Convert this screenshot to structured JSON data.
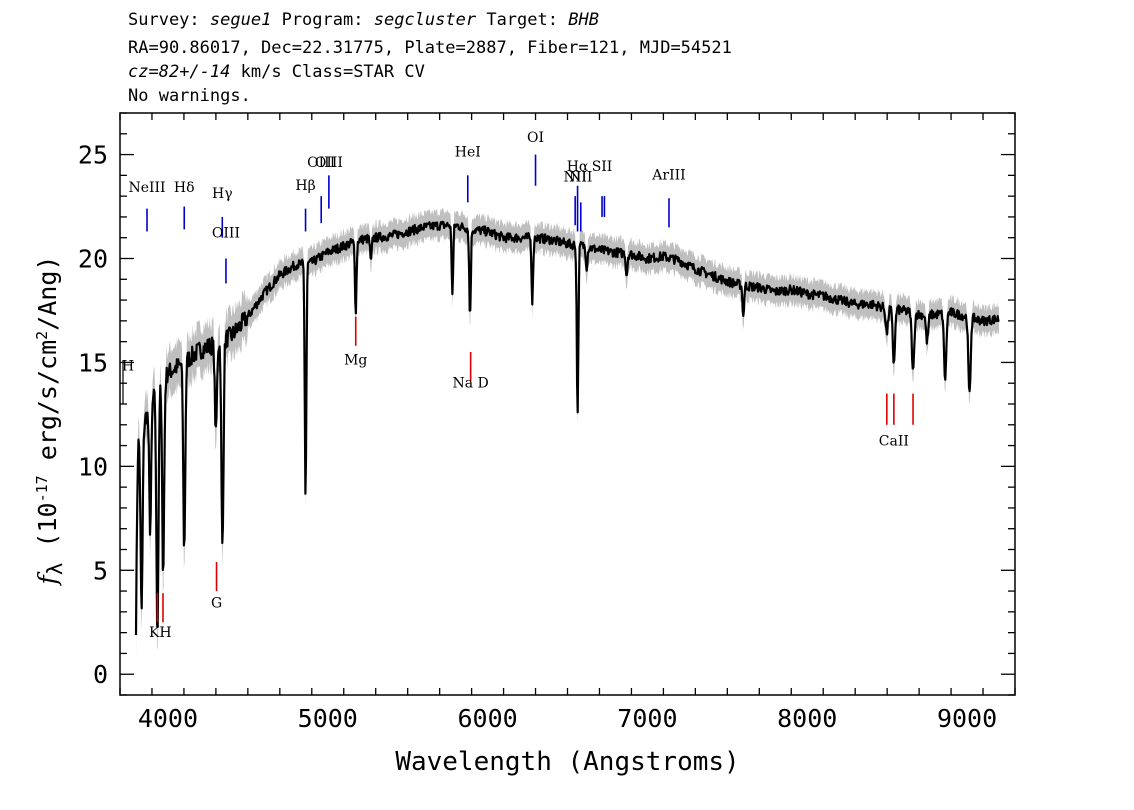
{
  "header": {
    "survey_label": "Survey:",
    "survey": "segue1",
    "program_label": "Program:",
    "program": "segcluster",
    "target_label": "Target:",
    "target": "BHB",
    "line2": "RA=90.86017, Dec=22.31775, Plate=2887, Fiber=121, MJD=54521",
    "cz_label": "cz=",
    "cz_value": "82+/-14",
    "cz_unit_class": " km/s Class=STAR CV",
    "warnings": "No warnings."
  },
  "chart_data": {
    "type": "line",
    "xlabel": "Wavelength (Angstroms)",
    "ylabel_symbol": "f",
    "ylabel_sub": "λ",
    "ylabel_pre": " (10",
    "ylabel_exp": "-17",
    "ylabel_post": " erg/s/cm",
    "ylabel_exp2": "2",
    "ylabel_tail": "/Ang)",
    "xlim": [
      3700,
      9300
    ],
    "ylim": [
      -1,
      27
    ],
    "xticks": [
      4000,
      5000,
      6000,
      7000,
      8000,
      9000
    ],
    "yticks": [
      0,
      5,
      10,
      15,
      20,
      25
    ],
    "colors": {
      "flux": "#000000",
      "error": "#bfbfbf",
      "emission": "#0000cc",
      "absorption": "#dd0000"
    },
    "continuum": [
      [
        3800,
        11.0
      ],
      [
        3900,
        13.2
      ],
      [
        4000,
        14.5
      ],
      [
        4100,
        15.0
      ],
      [
        4200,
        15.6
      ],
      [
        4300,
        15.9
      ],
      [
        4400,
        16.3
      ],
      [
        4500,
        17.2
      ],
      [
        4600,
        18.3
      ],
      [
        4700,
        19.2
      ],
      [
        4800,
        19.7
      ],
      [
        4900,
        19.8
      ],
      [
        5000,
        20.3
      ],
      [
        5100,
        20.6
      ],
      [
        5200,
        20.9
      ],
      [
        5300,
        21.0
      ],
      [
        5400,
        21.1
      ],
      [
        5500,
        21.3
      ],
      [
        5600,
        21.5
      ],
      [
        5700,
        21.6
      ],
      [
        5800,
        21.6
      ],
      [
        5900,
        21.4
      ],
      [
        6000,
        21.3
      ],
      [
        6100,
        21.0
      ],
      [
        6200,
        21.0
      ],
      [
        6300,
        21.0
      ],
      [
        6400,
        20.9
      ],
      [
        6500,
        20.7
      ],
      [
        6600,
        20.6
      ],
      [
        6700,
        20.4
      ],
      [
        6800,
        20.3
      ],
      [
        6900,
        20.2
      ],
      [
        7000,
        20.0
      ],
      [
        7100,
        20.1
      ],
      [
        7200,
        19.9
      ],
      [
        7300,
        19.5
      ],
      [
        7400,
        19.2
      ],
      [
        7500,
        18.9
      ],
      [
        7600,
        18.7
      ],
      [
        7700,
        18.6
      ],
      [
        7800,
        18.4
      ],
      [
        7900,
        18.5
      ],
      [
        8000,
        18.3
      ],
      [
        8100,
        18.2
      ],
      [
        8200,
        18.0
      ],
      [
        8300,
        17.8
      ],
      [
        8400,
        17.8
      ],
      [
        8500,
        17.6
      ],
      [
        8600,
        17.5
      ],
      [
        8700,
        17.3
      ],
      [
        8800,
        17.3
      ],
      [
        8900,
        17.4
      ],
      [
        9000,
        17.2
      ],
      [
        9100,
        17.0
      ],
      [
        9200,
        17.1
      ]
    ],
    "absorption_features": [
      [
        3798,
        1.9
      ],
      [
        3835,
        3.0
      ],
      [
        3889,
        7.0
      ],
      [
        3934,
        2.0
      ],
      [
        3970,
        5.0
      ],
      [
        4102,
        6.0
      ],
      [
        4300,
        11.5
      ],
      [
        4341,
        6.0
      ],
      [
        4861,
        8.5
      ],
      [
        5175,
        17.5
      ],
      [
        5270,
        19.8
      ],
      [
        5890,
        17.2
      ],
      [
        5780,
        18.4
      ],
      [
        6280,
        18.0
      ],
      [
        6563,
        12.6
      ],
      [
        6620,
        19.6
      ],
      [
        6870,
        19.2
      ],
      [
        7600,
        17.2
      ],
      [
        8498,
        16.4
      ],
      [
        8542,
        15.0
      ],
      [
        8662,
        14.5
      ],
      [
        8750,
        16.0
      ],
      [
        8863,
        14.2
      ],
      [
        9015,
        13.4
      ]
    ],
    "emission_lines": [
      {
        "label": "NeIII",
        "wave": 3869,
        "y1": 22.4,
        "y2": 21.3,
        "ty": 23.2
      },
      {
        "label": "Hδ",
        "wave": 4102,
        "y1": 22.5,
        "y2": 21.4,
        "ty": 23.2
      },
      {
        "label": "Hγ",
        "wave": 4340,
        "y1": 22.0,
        "y2": 21.0,
        "ty": 22.9
      },
      {
        "label": "OIII",
        "wave": 4363,
        "y1": 20.0,
        "y2": 18.8,
        "ty": 21.0
      },
      {
        "label": "Hβ",
        "wave": 4861,
        "y1": 22.4,
        "y2": 21.3,
        "ty": 23.3
      },
      {
        "label": "OIII",
        "wave": 4959,
        "y1": 23.0,
        "y2": 21.7,
        "ty": 24.4
      },
      {
        "label": "OIII",
        "wave": 5007,
        "y1": 24.0,
        "y2": 22.4,
        "ty": 24.4
      },
      {
        "label": "HeI",
        "wave": 5876,
        "y1": 24.0,
        "y2": 22.7,
        "ty": 24.9
      },
      {
        "label": "OI",
        "wave": 6300,
        "y1": 25.0,
        "y2": 23.5,
        "ty": 25.6
      },
      {
        "label": "NII",
        "wave": 6548,
        "y1": 23.0,
        "y2": 21.6,
        "ty": 23.7
      },
      {
        "label": "Hα",
        "wave": 6563,
        "y1": 23.5,
        "y2": 21.3,
        "ty": 24.2
      },
      {
        "label": "NII",
        "wave": 6583,
        "y1": 22.7,
        "y2": 21.3,
        "ty": 23.7
      },
      {
        "label": "SII",
        "wave": 6716,
        "y1": 23.0,
        "y2": 22.0,
        "ty": 24.2
      },
      {
        "label": "SII",
        "wave": 6731,
        "y1": 23.0,
        "y2": 22.0,
        "ty": ""
      },
      {
        "label": "ArIII",
        "wave": 7135,
        "y1": 22.9,
        "y2": 21.5,
        "ty": 23.8
      }
    ],
    "absorption_lines": [
      {
        "label": "KH",
        "wave": 3952,
        "waves": [
          3934,
          3969
        ],
        "y1": 3.9,
        "y2": 2.5,
        "ty": 1.8
      },
      {
        "label": "G",
        "wave": 4304,
        "waves": [
          4304
        ],
        "y1": 5.4,
        "y2": 4.0,
        "ty": 3.2
      },
      {
        "label": "Mg",
        "wave": 5175,
        "waves": [
          5175
        ],
        "y1": 17.2,
        "y2": 15.8,
        "ty": 14.9
      },
      {
        "label": "Na D",
        "wave": 5894,
        "waves": [
          5894
        ],
        "y1": 15.5,
        "y2": 14.1,
        "ty": 13.8
      },
      {
        "label": "CaII",
        "wave": 8542,
        "waves": [
          8498,
          8542,
          8662
        ],
        "y1": 13.5,
        "y2": 12.0,
        "ty": 11.0
      }
    ],
    "edge_label": "H"
  }
}
